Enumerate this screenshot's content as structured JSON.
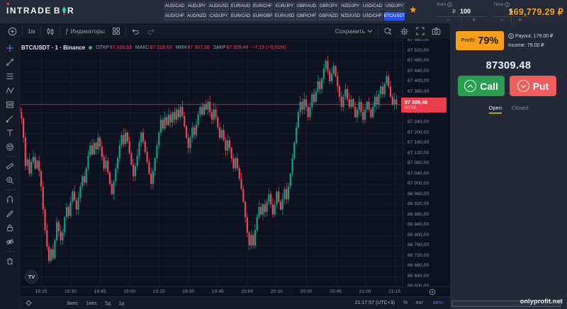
{
  "app": {
    "logo": {
      "word1": "INTRADE",
      "word2a": "B",
      "word2b": "R"
    },
    "balance": "169,779.29 ₽",
    "watermark": "onlyprofit.net"
  },
  "topbar": {
    "pairs_row1": [
      "AUD/CAD",
      "AUD/JPY",
      "AUD/USD",
      "EUR/AUD",
      "EUR/CHF",
      "EUR/JPY",
      "GBP/AUD",
      "GBP/JPY",
      "NZD/JPY",
      "USD/CAD",
      "USD/JPY"
    ],
    "pairs_row2": [
      "AUD/CHF",
      "AUD/NZD",
      "CAD/JPY",
      "EUR/CAD",
      "EUR/GBP",
      "EUR/USD",
      "GBP/CHF",
      "GBP/NZD",
      "NZD/USD",
      "USD/CHF",
      "BTC/USDT"
    ],
    "active_pair": "BTC/USDT",
    "star": "★",
    "sum": {
      "label": "Sum",
      "currency": "₽",
      "value": "100",
      "minus": "−",
      "plus": "+"
    },
    "time": {
      "label": "Time",
      "value": "5",
      "minus": "−",
      "plus": "+"
    }
  },
  "chart_toolbar": {
    "timeframe": "1м",
    "fx": "ƒ",
    "indicators": "Индикаторы",
    "save": "Сохранить"
  },
  "legend": {
    "symbol": "BTC/USDT · 1 · Binance",
    "open_label": "ОТКР",
    "open": "87 316,63",
    "high_label": "МАКС",
    "high": "87 316,63",
    "low_label": "МИН",
    "low": "87 307,38",
    "close_label": "ЗАКР",
    "close": "87 309,48",
    "change": "−7,15 (−0,01%)"
  },
  "price_tag": {
    "price": "87 309,48",
    "countdown": "00:52"
  },
  "tv_logo": "TV",
  "bottom_bar": {
    "ranges": [
      "3мес",
      "1мес",
      "5д",
      "1д"
    ],
    "clock": "21:17:07 (UTC+3)",
    "percent": "%",
    "log": "лог",
    "auto": "авто"
  },
  "panel": {
    "profit_label": "Profit:",
    "profit_value": "79%",
    "payout_label": "Payout: 179.00 ₽",
    "income_label": "Income: 79.00 ₽",
    "price": "87309.48",
    "call_label": "Call",
    "put_label": "Put",
    "call_arrow": "⌃",
    "put_arrow": "⌄",
    "tab_open": "Open",
    "tab_closed": "Closed"
  },
  "draw_toolbar": {
    "icons": [
      "crosshair-icon",
      "trendline-icon",
      "fib-lines-icon",
      "xabcd-pattern-icon",
      "forecast-icon",
      "brush-icon",
      "text-icon",
      "emoji-icon",
      "ruler-icon",
      "zoom-in-icon",
      "magnet-icon",
      "edit-icon",
      "lock-icon",
      "eye-icon",
      "trash-icon"
    ],
    "separators_after": [
      7,
      9,
      13
    ]
  },
  "chart_data": {
    "type": "candlestick",
    "symbol": "BTC/USDT",
    "interval": "1",
    "exchange": "Binance",
    "y_max": 87560,
    "y_min": 86600,
    "y_step": 40,
    "price_ticks": [
      "87 560,00",
      "87 520,00",
      "87 480,00",
      "87 440,00",
      "87 400,00",
      "87 360,00",
      "87 320,00",
      "87 280,00",
      "87 240,00",
      "87 200,00",
      "87 160,00",
      "87 120,00",
      "87 080,00",
      "87 040,00",
      "87 000,00",
      "86 960,00",
      "86 920,00",
      "86 880,00",
      "86 840,00",
      "86 800,00",
      "86 760,00",
      "86 720,00",
      "86 680,00",
      "86 640,00",
      "86 600,00"
    ],
    "time_ticks": [
      "18:15",
      "18:30",
      "18:45",
      "19:00",
      "19:15",
      "19:30",
      "19:45",
      "20:00",
      "20:15",
      "20:30",
      "20:45",
      "21:00",
      "21:15"
    ],
    "last_price": 87309.48,
    "open_first": 87300,
    "closes": [
      87280,
      87255,
      87180,
      87070,
      87095,
      87040,
      87085,
      87105,
      87060,
      87090,
      87050,
      86990,
      86900,
      86820,
      86755,
      86700,
      86745,
      86710,
      86780,
      86850,
      86815,
      86780,
      86810,
      86870,
      86910,
      86875,
      86930,
      86970,
      86935,
      86900,
      86945,
      86990,
      87030,
      87005,
      87060,
      87110,
      87150,
      87115,
      87160,
      87135,
      87180,
      87145,
      87105,
      87060,
      87090,
      87045,
      87000,
      86960,
      87010,
      87060,
      87100,
      87150,
      87190,
      87155,
      87200,
      87165,
      87120,
      87075,
      87030,
      87070,
      87110,
      87160,
      87200,
      87165,
      87125,
      87085,
      87040,
      87000,
      87050,
      87100,
      87150,
      87200,
      87250,
      87215,
      87260,
      87230,
      87270,
      87240,
      87280,
      87250,
      87290,
      87260,
      87300,
      87265,
      87225,
      87180,
      87140,
      87180,
      87220,
      87190,
      87230,
      87270,
      87300,
      87270,
      87310,
      87290,
      87320,
      87280,
      87250,
      87290,
      87260,
      87220,
      87180,
      87210,
      87170,
      87130,
      87170,
      87140,
      87100,
      87060,
      87100,
      87060,
      87020,
      86980,
      86930,
      86870,
      86810,
      86760,
      86800,
      86760,
      86820,
      86870,
      86910,
      86880,
      86920,
      86890,
      86930,
      86960,
      86920,
      86880,
      86920,
      86970,
      86930,
      86900,
      86940,
      86980,
      86940,
      86990,
      87040,
      87100,
      87160,
      87220,
      87280,
      87320,
      87290,
      87330,
      87300,
      87260,
      87300,
      87350,
      87320,
      87360,
      87400,
      87370,
      87410,
      87450,
      87480,
      87440,
      87400,
      87430,
      87460,
      87420,
      87380,
      87340,
      87300,
      87340,
      87370,
      87330,
      87300,
      87330,
      87300,
      87260,
      87290,
      87320,
      87280,
      87250,
      87290,
      87320,
      87290,
      87260,
      87300,
      87340,
      87310,
      87350,
      87380,
      87350,
      87390,
      87420,
      87380,
      87340,
      87310,
      87330,
      87309.48
    ]
  },
  "colors": {
    "up": "#13a185",
    "down": "#ef4655",
    "grid": "#1a2030",
    "line": "#ea3d4e",
    "accent_orange": "#f7a021",
    "active_blue": "#2350e0",
    "call_green": "#2a9d51",
    "put_red": "#ee5c5c"
  }
}
